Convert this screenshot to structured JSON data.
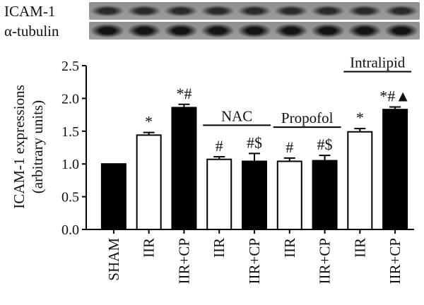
{
  "blot": {
    "rows": [
      {
        "label": "ICAM-1"
      },
      {
        "label": "α-tubulin"
      }
    ]
  },
  "chart_data": {
    "type": "bar",
    "ylabel_line1": "ICAM-1 expressions",
    "ylabel_line2": "(arbitrary units)",
    "ylim": [
      0,
      2.5
    ],
    "yticks": [
      "0.0",
      "0.5",
      "1.0",
      "1.5",
      "2.0",
      "2.5"
    ],
    "categories": [
      "SHAM",
      "IIR",
      "IIR+CP",
      "IIR",
      "IIR+CP",
      "IIR",
      "IIR+CP",
      "IIR",
      "IIR+CP"
    ],
    "values": [
      1.0,
      1.44,
      1.86,
      1.07,
      1.04,
      1.04,
      1.05,
      1.49,
      1.83
    ],
    "errors": [
      0.0,
      0.04,
      0.05,
      0.04,
      0.12,
      0.05,
      0.08,
      0.05,
      0.04
    ],
    "fills": [
      "#000000",
      "#ffffff",
      "#000000",
      "#ffffff",
      "#000000",
      "#ffffff",
      "#000000",
      "#ffffff",
      "#000000"
    ],
    "annotations": [
      "",
      "*",
      "*#",
      "#",
      "#$",
      "#",
      "#$",
      "*",
      "*#▲"
    ],
    "groups": [
      {
        "label": "NAC",
        "from": 3,
        "to": 4
      },
      {
        "label": "Propofol",
        "from": 5,
        "to": 6
      },
      {
        "label": "Intralipid",
        "from": 7,
        "to": 8
      }
    ],
    "grid": false,
    "legend": "none"
  }
}
